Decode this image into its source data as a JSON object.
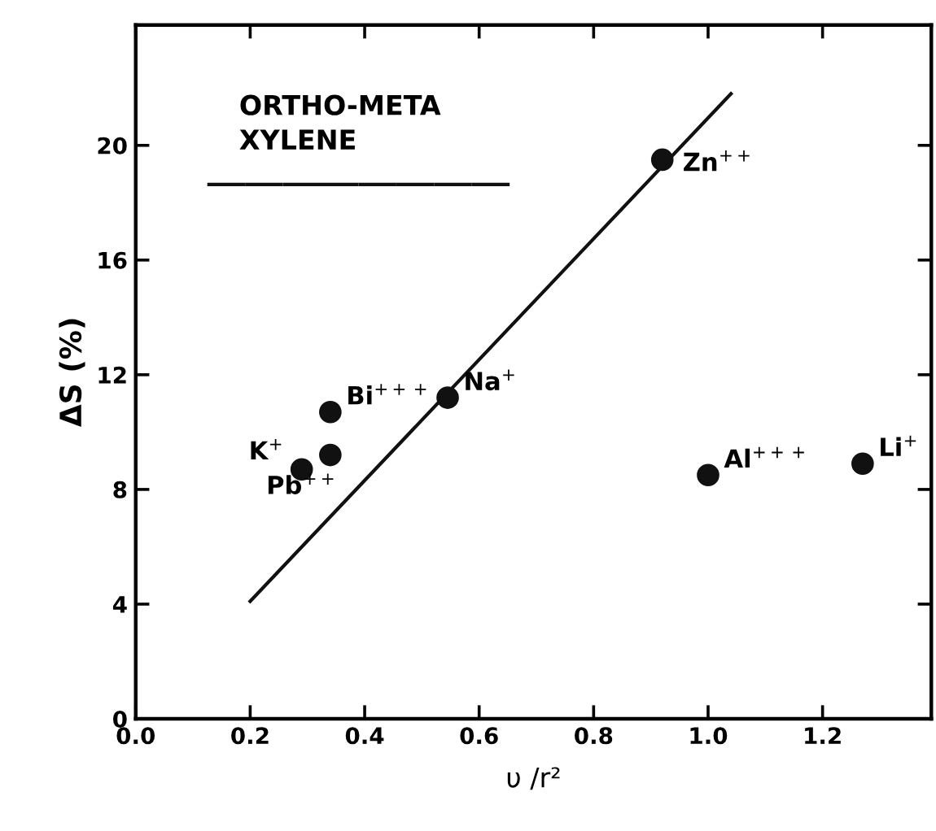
{
  "chart_data": {
    "type": "scatter",
    "xlabel": "υ /r²",
    "ylabel": "ΔS (%)",
    "series": [
      {
        "color": "#111111",
        "marker": "circle",
        "x": [
          0.29,
          0.34,
          0.34,
          0.545,
          0.92,
          1.0,
          1.27
        ],
        "values": [
          8.7,
          9.2,
          10.7,
          11.2,
          19.5,
          8.5,
          8.9
        ]
      },
      {
        "type": "line",
        "color": "#111111",
        "marker": "none",
        "line_style": "solid",
        "x": [
          0.2,
          1.04
        ],
        "values": [
          4.1,
          21.8
        ]
      }
    ],
    "annotations": [
      "ORTHO-META\nXYLENE",
      {
        "text": "K$^{+}$",
        "x": 0.29,
        "y": 8.7
      },
      {
        "text": "Pb$^{++}$",
        "x": 0.34,
        "y": 9.2
      },
      {
        "text": "Bi$^{+++}$",
        "x": 0.34,
        "y": 10.7
      },
      {
        "text": "Na$^{+}$",
        "x": 0.545,
        "y": 11.2
      },
      {
        "text": "Zn$^{++}$",
        "x": 0.92,
        "y": 19.5
      },
      {
        "text": "Al$^{+++}$",
        "x": 1.0,
        "y": 8.5
      },
      {
        "text": "Li$^{+}$",
        "x": 1.27,
        "y": 8.9
      }
    ],
    "xlim": [
      0.0,
      1.39
    ],
    "ylim": [
      0,
      24.2
    ],
    "xticks": [
      {
        "value": 0.0,
        "label": "0.0"
      },
      0.2,
      0.4,
      0.6,
      0.8,
      {
        "value": 1.0,
        "label": "1.0"
      },
      1.2
    ],
    "yticks": [
      0,
      4,
      8,
      12,
      16,
      20
    ],
    "grid": false,
    "legend": false
  }
}
